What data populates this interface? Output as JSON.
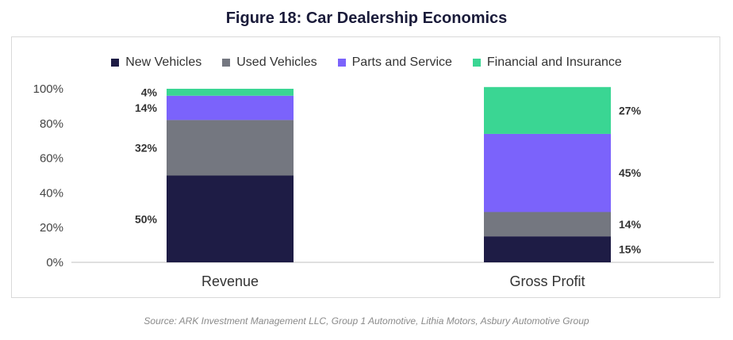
{
  "title": "Figure 18: Car Dealership Economics",
  "source": "Source: ARK Investment Management LLC, Group 1 Automotive, Lithia Motors, Asbury Automotive Group",
  "colors": {
    "New Vehicles": "#1e1c45",
    "Used Vehicles": "#747780",
    "Parts and Service": "#7b63fb",
    "Financial and Insurance": "#3ad693"
  },
  "chart_data": {
    "type": "bar",
    "stacked": true,
    "title": "Figure 18: Car Dealership Economics",
    "categories": [
      "Revenue",
      "Gross Profit"
    ],
    "series": [
      {
        "name": "New Vehicles",
        "values": [
          50,
          15
        ]
      },
      {
        "name": "Used Vehicles",
        "values": [
          32,
          14
        ]
      },
      {
        "name": "Parts and Service",
        "values": [
          14,
          45
        ]
      },
      {
        "name": "Financial and Insurance",
        "values": [
          4,
          27
        ]
      }
    ],
    "data_labels": [
      [
        "50%",
        "32%",
        "14%",
        "4%"
      ],
      [
        "15%",
        "14%",
        "45%",
        "27%"
      ]
    ],
    "yticks": [
      "0%",
      "20%",
      "40%",
      "60%",
      "80%",
      "100%"
    ],
    "ylim": [
      0,
      100
    ],
    "grid": false,
    "legend": "top"
  }
}
